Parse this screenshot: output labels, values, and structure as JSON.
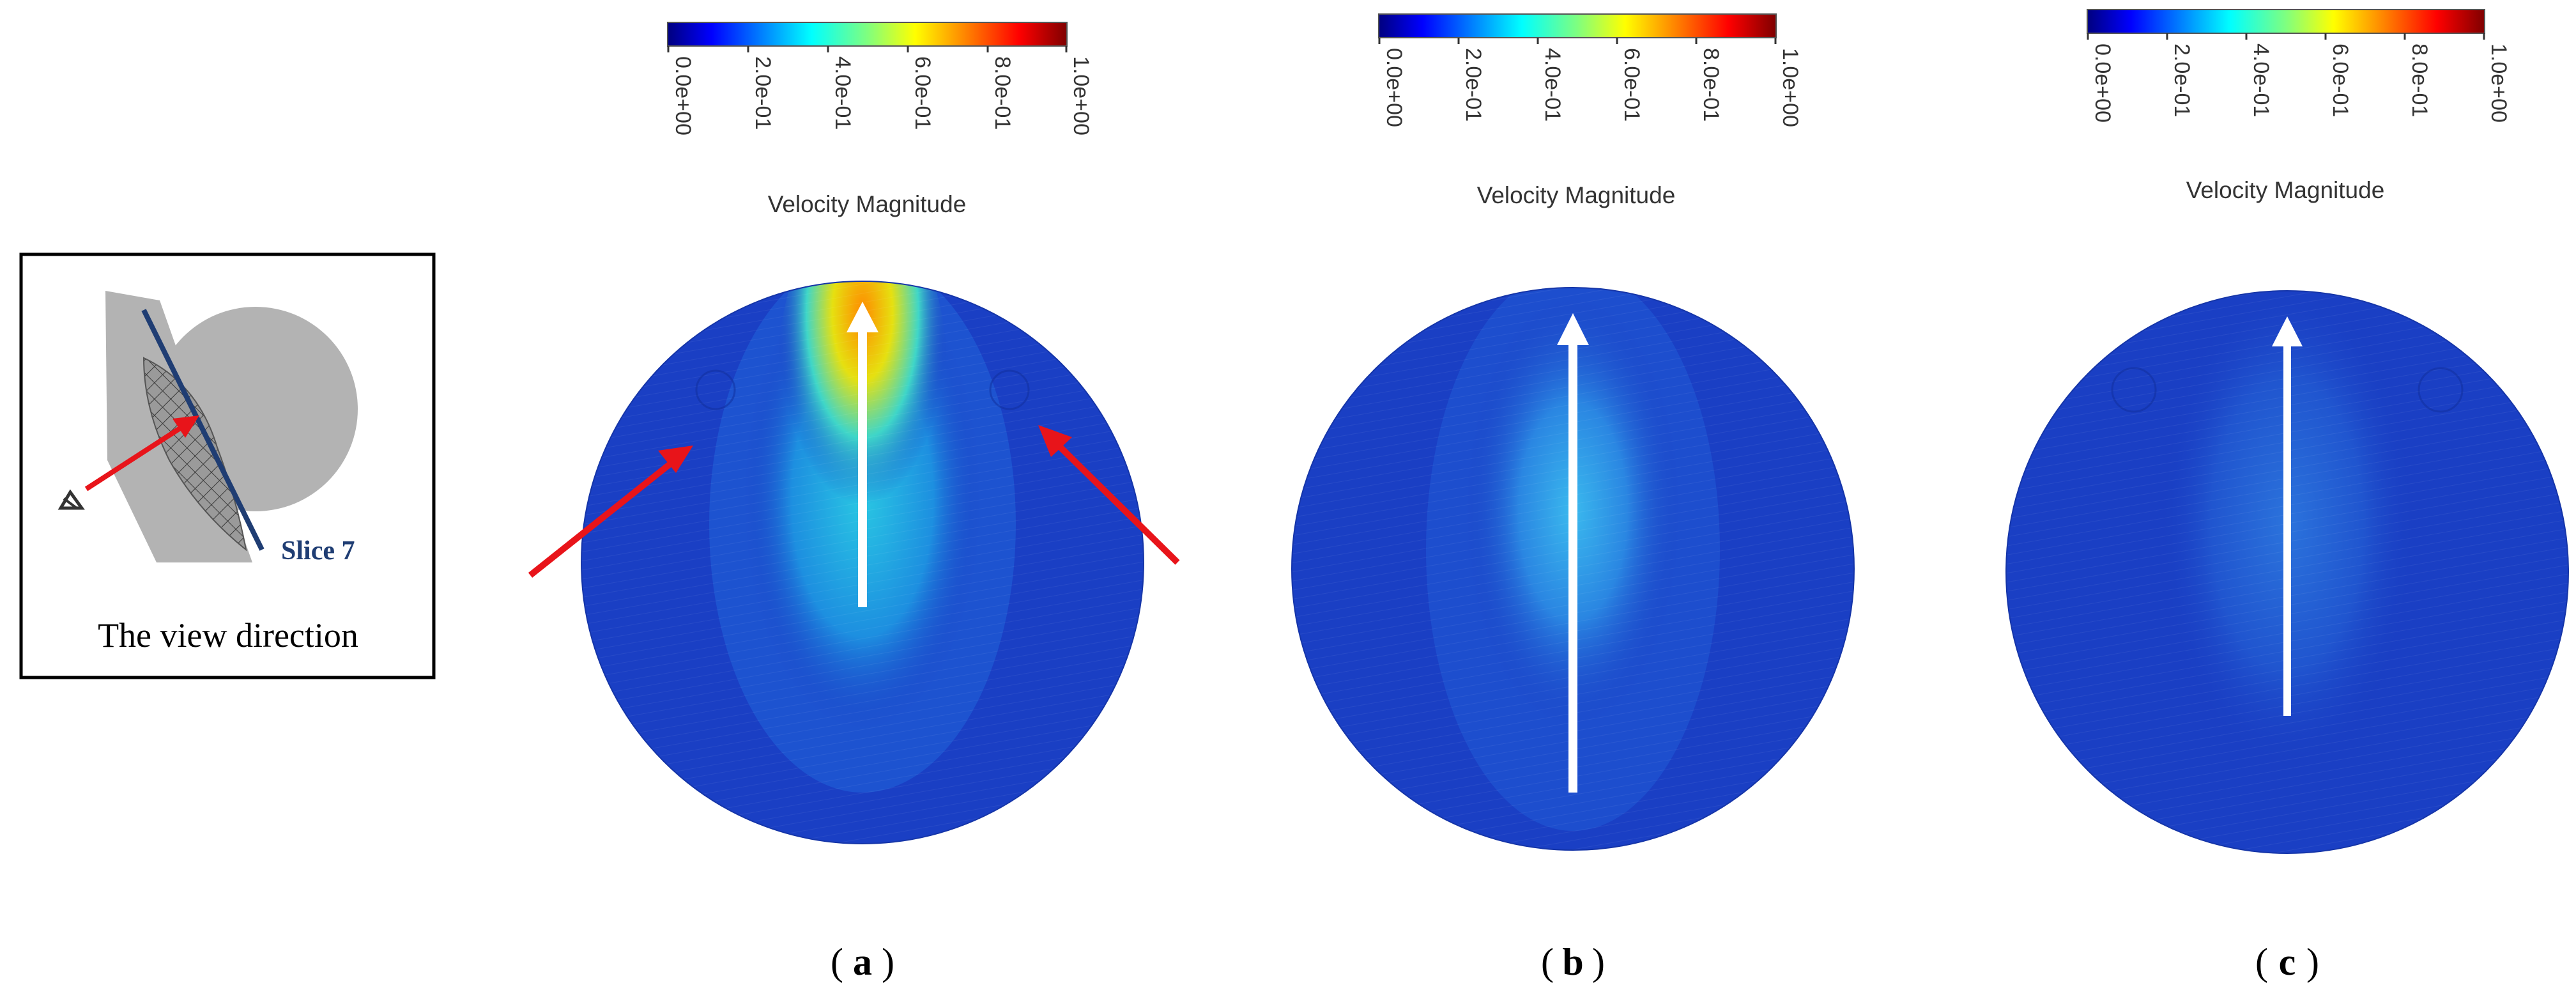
{
  "colorbar": {
    "label": "Velocity Magnitude",
    "ticks": [
      "0.0e+00",
      "2.0e-01",
      "4.0e-01",
      "6.0e-01",
      "8.0e-01",
      "1.0e+00"
    ],
    "range": [
      0,
      1
    ],
    "colormap": [
      "#00007f",
      "#0000ff",
      "#007fff",
      "#00ffff",
      "#7fff7f",
      "#ffff00",
      "#ff7f00",
      "#ff0000",
      "#7f0000"
    ]
  },
  "inset": {
    "caption": "The view direction",
    "slice_label": "Slice 7"
  },
  "panels": [
    {
      "label": "a",
      "jet_peak": 0.72
    },
    {
      "label": "b",
      "jet_peak": 0.36
    },
    {
      "label": "c",
      "jet_peak": 0.28
    }
  ],
  "colors": {
    "background_flow": "#1a3fc4",
    "arrow_white": "#ffffff",
    "arrow_red": "#e8141a",
    "slice_line": "#1f3d73",
    "inset_gray": "#b3b3b3"
  }
}
